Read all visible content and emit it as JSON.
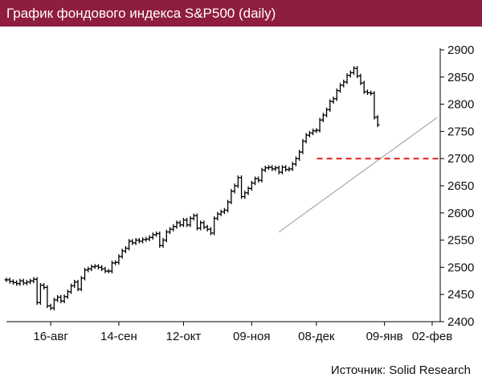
{
  "chart_data": {
    "type": "line",
    "title": "График фондового индекса S&P500 (daily)",
    "source": "Источник: Solid Research",
    "x_ticks": [
      "16-авг",
      "14-сен",
      "12-окт",
      "09-ноя",
      "08-дек",
      "09-янв",
      "02-фев"
    ],
    "y_ticks": [
      2400,
      2450,
      2500,
      2550,
      2600,
      2650,
      2700,
      2750,
      2800,
      2850,
      2900
    ],
    "ylim": [
      2400,
      2900
    ],
    "x_range": [
      0,
      125
    ],
    "x_tick_index": [
      13,
      33,
      52,
      72,
      91,
      111,
      125
    ],
    "series": [
      {
        "values": [
          2477,
          2474,
          2472,
          2470,
          2475,
          2471,
          2473,
          2475,
          2478,
          2435,
          2467,
          2463,
          2429,
          2425,
          2440,
          2445,
          2438,
          2446,
          2455,
          2466,
          2473,
          2460,
          2480,
          2495,
          2497,
          2501,
          2502,
          2500,
          2497,
          2493,
          2493,
          2508,
          2509,
          2520,
          2530,
          2535,
          2548,
          2545,
          2550,
          2548,
          2551,
          2552,
          2555,
          2560,
          2562,
          2540,
          2550,
          2565,
          2570,
          2575,
          2582,
          2578,
          2587,
          2578,
          2590,
          2595,
          2572,
          2582,
          2574,
          2570,
          2563,
          2590,
          2598,
          2602,
          2605,
          2620,
          2640,
          2650,
          2665,
          2630,
          2637,
          2645,
          2655,
          2663,
          2660,
          2679,
          2683,
          2684,
          2681,
          2683,
          2675,
          2684,
          2680,
          2681,
          2690,
          2700,
          2712,
          2732,
          2743,
          2747,
          2751,
          2752,
          2771,
          2780,
          2790,
          2805,
          2810,
          2825,
          2835,
          2841,
          2853,
          2858,
          2866,
          2852,
          2839,
          2823,
          2821,
          2820,
          2776,
          2762
        ]
      }
    ],
    "resistance_level": 2700,
    "trendline": {
      "from": [
        80,
        2565
      ],
      "to": [
        125,
        2771
      ]
    }
  },
  "colors": {
    "title_bg": "#8f1d3f",
    "resistance": "#e21d1d",
    "trendline": "#a8a8a8",
    "bars": "#000000"
  }
}
